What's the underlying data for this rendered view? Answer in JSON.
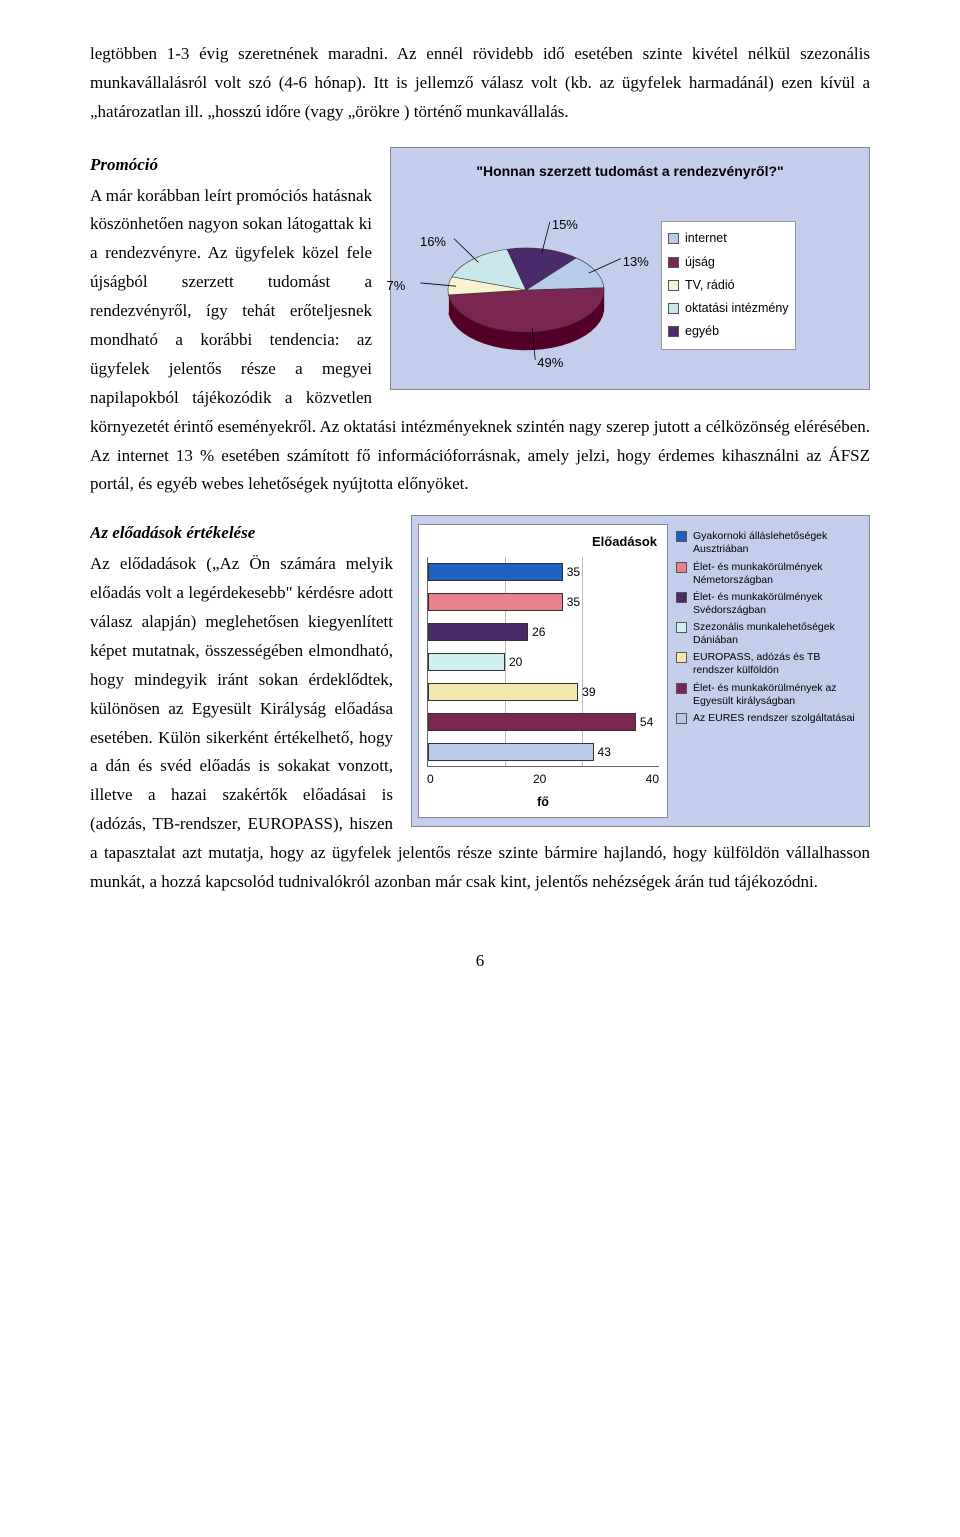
{
  "paragraphs": {
    "p1": "legtöbben 1-3 évig szeretnének maradni. Az ennél rövidebb idő esetében szinte kivétel nélkül szezonális munkavállalásról volt szó (4-6 hónap). Itt is jellemző válasz volt (kb. az ügyfelek harmadánál) ezen kívül a „határozatlan ill. „hosszú időre (vagy „örökre ) történő munkavállalás.",
    "sec1_head": "Promóció",
    "sec1_body": "A már korábban leírt promóciós hatásnak köszönhetően nagyon sokan látogattak ki a rendezvényre. Az ügyfelek közel fele újságból szerzett tudomást a rendezvényről, így tehát erőteljesnek mondható a korábbi tendencia: az ügyfelek jelentős része a megyei napilapokból tájékozódik a közvetlen környezetét érintő eseményekről. Az oktatási intézményeknek szintén nagy szerep jutott a célközönség elérésében. Az internet 13 % esetében számított fő információforrásnak, amely jelzi, hogy érdemes kihasználni az ÁFSZ portál, és egyéb webes lehetőségek nyújtotta előnyöket.",
    "sec2_head": "Az előadások értékelése",
    "sec2_body": "Az elődadások („Az Ön számára melyik előadás volt a legérdekesebb\" kérdésre adott válasz alapján) meglehetősen kiegyenlített képet mutatnak, összességében elmondható, hogy mindegyik iránt sokan érdeklődtek, különösen az Egyesült Királyság előadása esetében. Külön sikerként értékelhető, hogy a dán és svéd előadás is sokakat vonzott, illetve a hazai szakértők előadásai is (adózás, TB-rendszer, EUROPASS), hiszen a tapasztalat azt mutatja, hogy az ügyfelek jelentős része szinte bármire hajlandó, hogy külföldön vállalhasson munkát, a hozzá kapcsolód tudnivalókról azonban már csak kint, jelentős nehézségek árán tud tájékozódni."
  },
  "pie_chart": {
    "title": "\"Honnan szerzett tudomást a rendezvényről?\"",
    "slices": [
      {
        "label": "internet",
        "value": 13,
        "display": "13%",
        "color": "#b8cbe8"
      },
      {
        "label": "újság",
        "value": 49,
        "display": "49%",
        "color": "#7a2650"
      },
      {
        "label": "TV, rádió",
        "value": 7,
        "display": "7%",
        "color": "#f7f2d0"
      },
      {
        "label": "oktatási intézmény",
        "value": 16,
        "display": "16%",
        "color": "#c8e8ec"
      },
      {
        "label": "egyéb",
        "value": 15,
        "display": "15%",
        "color": "#4a2a6a"
      }
    ],
    "legend_marker_colors": [
      "#b8cbe8",
      "#7a2650",
      "#f7f2d0",
      "#c8e8ec",
      "#4a2a6a"
    ]
  },
  "bar_chart": {
    "title": "Előadások",
    "x_label": "fő",
    "x_ticks": [
      "0",
      "20",
      "40"
    ],
    "x_max": 60,
    "bars": [
      {
        "label": "Gyakornoki álláslehetőségek Ausztriában",
        "value": 35,
        "display": "35",
        "color": "#2060c0"
      },
      {
        "label": "Élet- és munkakörülmények Németországban",
        "value": 35,
        "display": "35",
        "color": "#e88090"
      },
      {
        "label": "Élet- és munkakörülmények Svédországban",
        "value": 26,
        "display": "26",
        "color": "#4a2a6a"
      },
      {
        "label": "Szezonális munkalehetőségek Dániában",
        "value": 20,
        "display": "20",
        "color": "#d0f0f4"
      },
      {
        "label": "EUROPASS, adózás és TB rendszer külföldön",
        "value": 39,
        "display": "39",
        "color": "#f0e8b0"
      },
      {
        "label": "Élet- és munkakörülmények az Egyesült királyságban",
        "value": 54,
        "display": "54",
        "color": "#7a2650"
      },
      {
        "label": "Az EURES rendszer szolgáltatásai",
        "value": 43,
        "display": "43",
        "color": "#b8cbe8"
      }
    ]
  },
  "page_number": "6"
}
